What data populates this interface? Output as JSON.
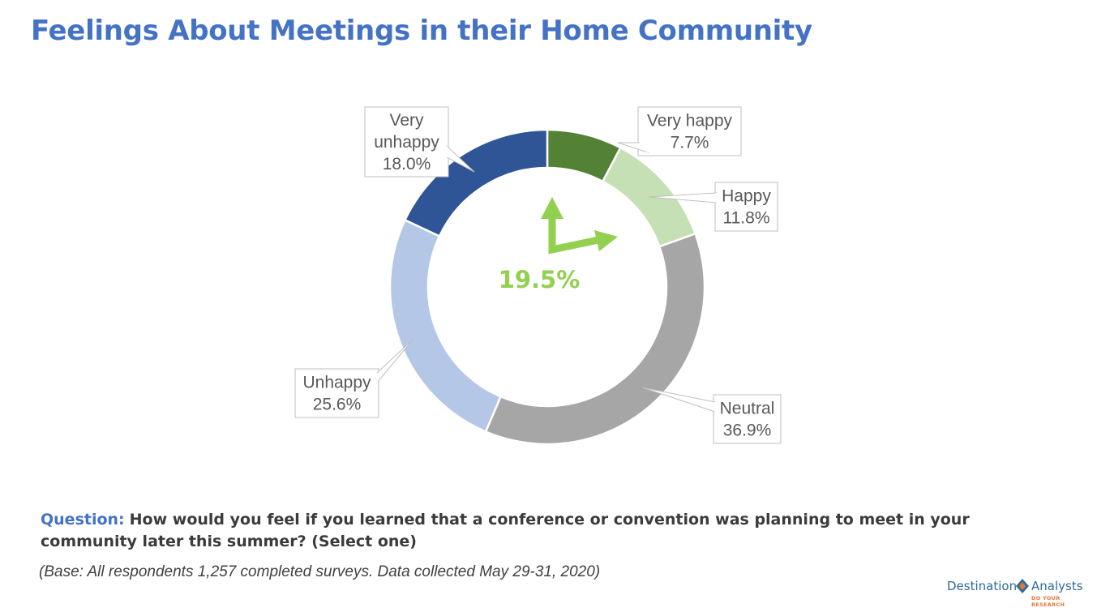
{
  "title": "Feelings About Meetings in their Home Community",
  "chart_data": {
    "type": "pie",
    "style": "donut",
    "categories": [
      "Very happy",
      "Happy",
      "Neutral",
      "Unhappy",
      "Very unhappy"
    ],
    "values": [
      7.7,
      11.8,
      36.9,
      25.6,
      18.0
    ],
    "value_labels": [
      "7.7%",
      "11.8%",
      "36.9%",
      "25.6%",
      "18.0%"
    ],
    "colors": [
      "#538135",
      "#c5e0b4",
      "#a6a6a6",
      "#b4c7e7",
      "#2f5597"
    ],
    "center_value": "19.5%",
    "center_color": "#92d050"
  },
  "question": {
    "label": "Question:",
    "text": "How would you feel if you learned that a conference or convention was planning to meet in your community later this summer? (Select one)"
  },
  "base_note": "(Base: All respondents 1,257 completed surveys.  Data collected May 29-31, 2020)",
  "logo": {
    "word1": "Destination",
    "word2": "Analysts",
    "tagline": "DO YOUR RESEARCH"
  }
}
